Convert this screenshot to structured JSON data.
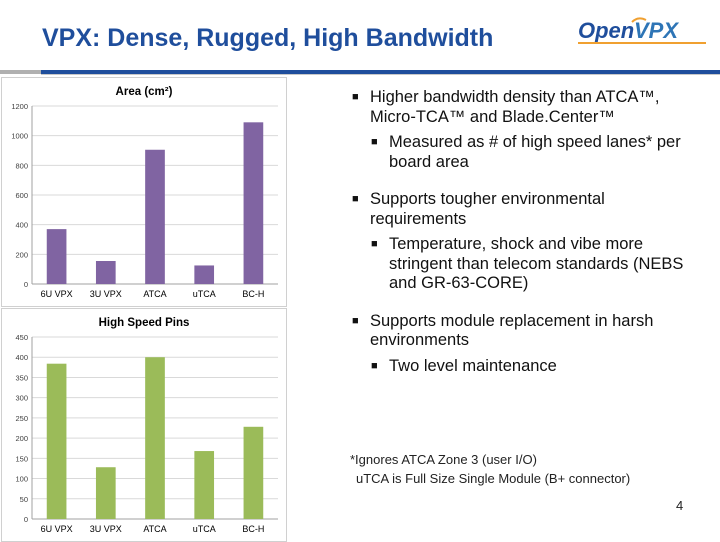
{
  "slide": {
    "title": "VPX: Dense, Rugged, High Bandwidth",
    "logo_text_open": "Open",
    "logo_text_vpx": "VPX",
    "page_number": "4",
    "colors": {
      "title": "#1f4e9c",
      "area_bar": "#8064a2",
      "pins_bar": "#9bbb59"
    }
  },
  "bullets": [
    {
      "text": "Higher bandwidth density than ATCA™, Micro-TCA™ and Blade.Center™",
      "sub": [
        "Measured as # of high speed lanes* per board area"
      ]
    },
    {
      "text": "Supports tougher environmental requirements",
      "sub": [
        "Temperature, shock and vibe more stringent than telecom standards (NEBS and GR-63-CORE)"
      ]
    },
    {
      "text": "Supports module replacement in harsh environments",
      "sub": [
        "Two level maintenance"
      ]
    }
  ],
  "footnote": {
    "line1": "*Ignores ATCA Zone 3 (user I/O)",
    "line2": "uTCA is Full Size Single Module (B+ connector)"
  },
  "chart_data": [
    {
      "type": "bar",
      "title": "Area (cm²)",
      "categories": [
        "6U VPX",
        "3U VPX",
        "ATCA",
        "uTCA",
        "BC-H"
      ],
      "values": [
        370,
        155,
        905,
        125,
        1090
      ],
      "ylim": [
        0,
        1200
      ],
      "yticks": [
        0,
        200,
        400,
        600,
        800,
        1000,
        1200
      ],
      "grid": true,
      "color": "#8064a2"
    },
    {
      "type": "bar",
      "title": "High Speed Pins",
      "categories": [
        "6U VPX",
        "3U VPX",
        "ATCA",
        "uTCA",
        "BC-H"
      ],
      "values": [
        384,
        128,
        400,
        168,
        228
      ],
      "ylim": [
        0,
        450
      ],
      "yticks": [
        0,
        50,
        100,
        150,
        200,
        250,
        300,
        350,
        400,
        450
      ],
      "grid": true,
      "color": "#9bbb59"
    }
  ]
}
